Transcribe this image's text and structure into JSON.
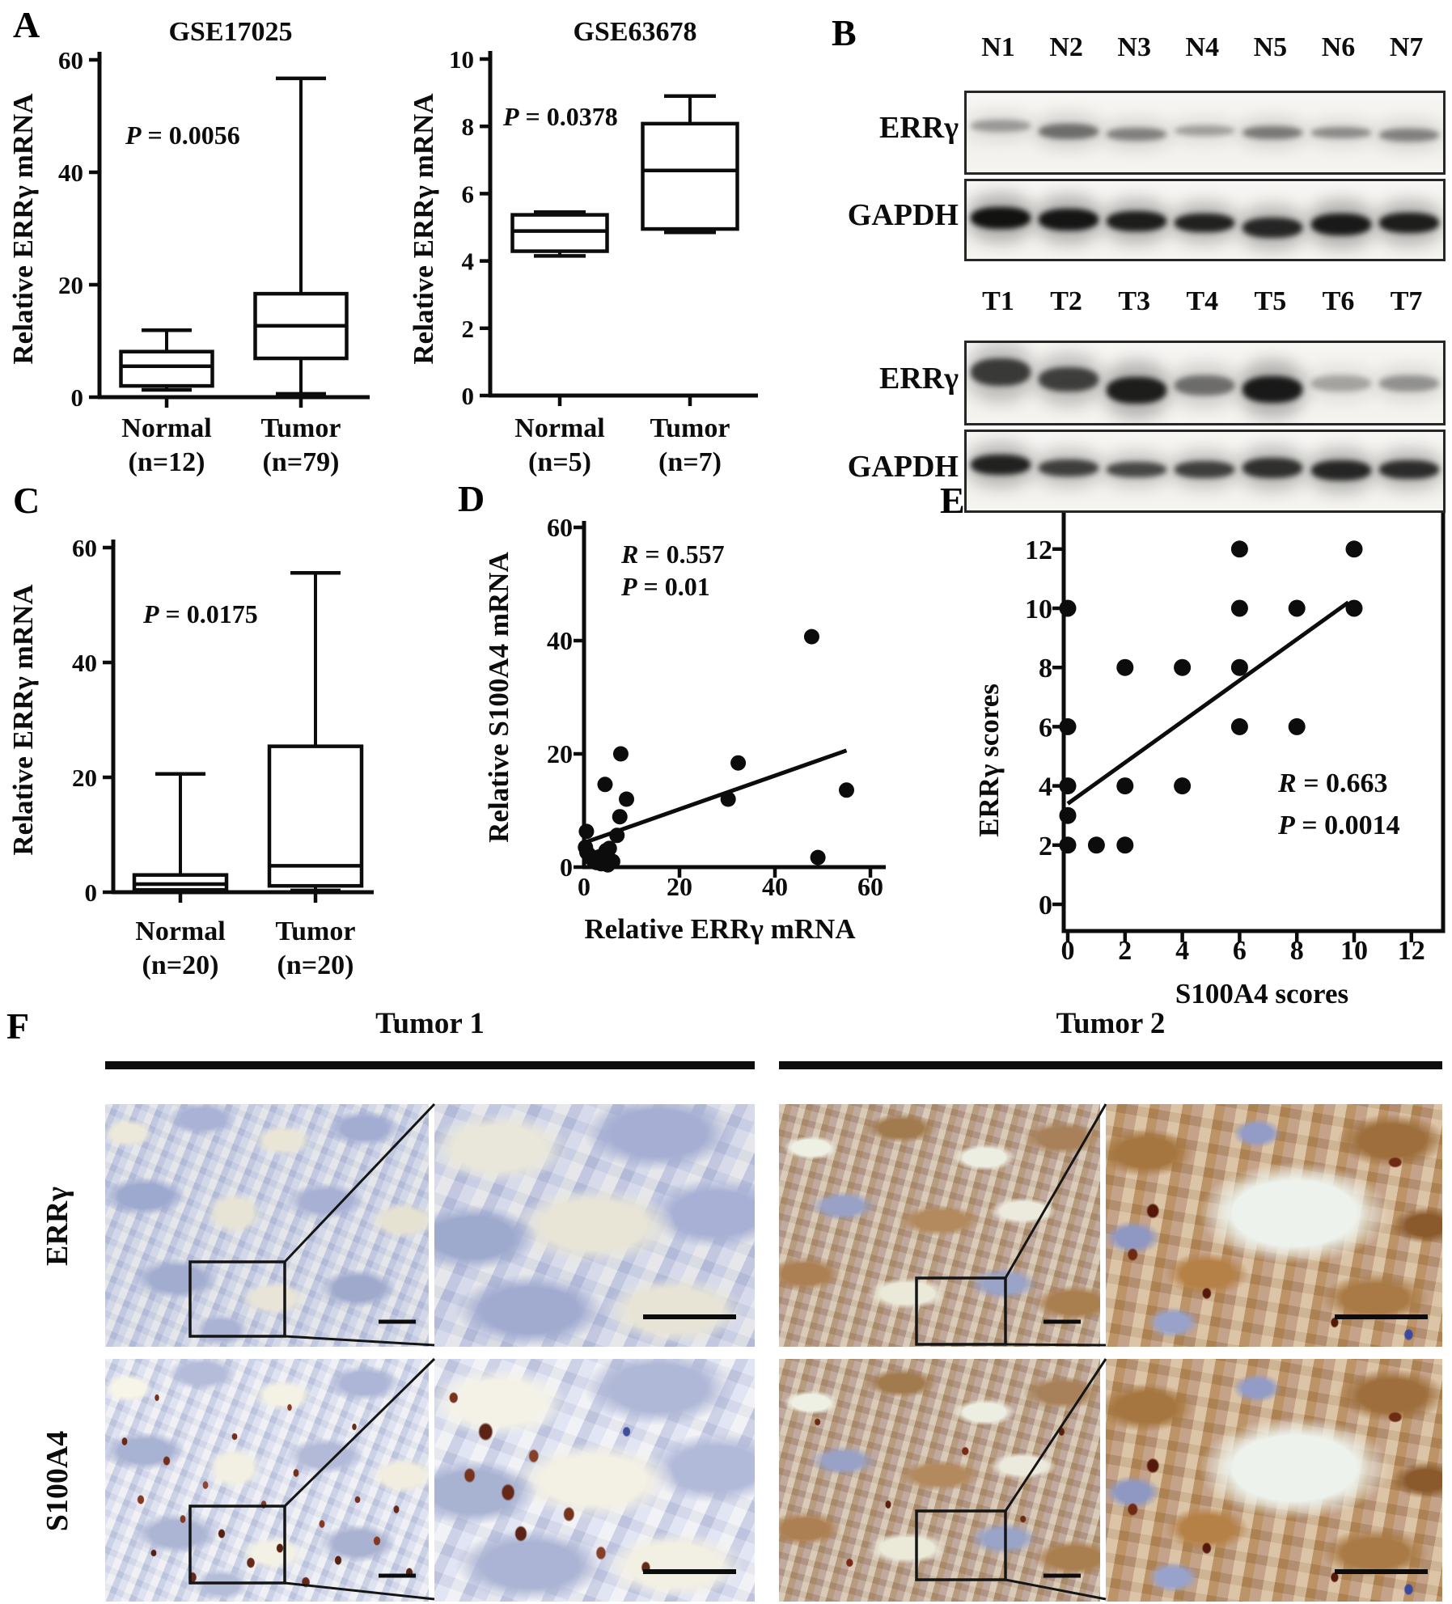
{
  "panel_labels": {
    "a": "A",
    "b": "B",
    "c": "C",
    "d": "D",
    "e": "E",
    "f": "F"
  },
  "chart_data": [
    {
      "id": "gse17025",
      "type": "box",
      "title": "GSE17025",
      "ylabel": "Relative ERRγ mRNA",
      "annotation": "P = 0.0056",
      "ylim": [
        0,
        60
      ],
      "yticks": [
        0,
        20,
        40,
        60
      ],
      "boxes": [
        {
          "label": "Normal",
          "sublabel": "(n=12)",
          "whisker_low": 1.3,
          "q1": 2.0,
          "median": 5.5,
          "q3": 8.1,
          "whisker_high": 11.9
        },
        {
          "label": "Tumor",
          "sublabel": "(n=79)",
          "whisker_low": 0.6,
          "q1": 6.9,
          "median": 12.7,
          "q3": 18.4,
          "whisker_high": 56.7
        }
      ]
    },
    {
      "id": "gse63678",
      "type": "box",
      "title": "GSE63678",
      "ylabel": "Relative ERRγ mRNA",
      "annotation": "P = 0.0378",
      "ylim": [
        0,
        10
      ],
      "yticks": [
        0,
        2,
        4,
        6,
        8,
        10
      ],
      "boxes": [
        {
          "label": "Normal",
          "sublabel": "(n=5)",
          "whisker_low": 4.15,
          "q1": 4.29,
          "median": 4.89,
          "q3": 5.37,
          "whisker_high": 5.45
        },
        {
          "label": "Tumor",
          "sublabel": "(n=7)",
          "whisker_low": 4.85,
          "q1": 4.95,
          "median": 6.69,
          "q3": 8.08,
          "whisker_high": 8.9
        }
      ]
    },
    {
      "id": "patients-qpcr",
      "type": "box",
      "title": "",
      "ylabel": "Relative ERRγ mRNA",
      "annotation": "P = 0.0175",
      "ylim": [
        0,
        60
      ],
      "yticks": [
        0,
        20,
        40,
        60
      ],
      "boxes": [
        {
          "label": "Normal",
          "sublabel": "(n=20)",
          "whisker_low": 0.2,
          "q1": 0.4,
          "median": 1.4,
          "q3": 3.0,
          "whisker_high": 20.6
        },
        {
          "label": "Tumor",
          "sublabel": "(n=20)",
          "whisker_low": 0.3,
          "q1": 1.1,
          "median": 4.6,
          "q3": 25.4,
          "whisker_high": 55.6
        }
      ]
    },
    {
      "id": "mrna-correlation",
      "type": "scatter",
      "xlabel": "Relative ERRγ mRNA",
      "ylabel": "Relative S100A4 mRNA",
      "annotations": [
        "R = 0.557",
        "P = 0.01"
      ],
      "xlim": [
        0,
        60
      ],
      "ylim": [
        0,
        60
      ],
      "xticks": [
        0,
        20,
        40,
        60
      ],
      "yticks": [
        0,
        20,
        40,
        60
      ],
      "points": [
        [
          0.3,
          3.5
        ],
        [
          0.5,
          6.3
        ],
        [
          0.6,
          2.6
        ],
        [
          1,
          2.2
        ],
        [
          1.5,
          1.6
        ],
        [
          2,
          1.2
        ],
        [
          2.6,
          0.8
        ],
        [
          3.2,
          1.8
        ],
        [
          3.6,
          0.6
        ],
        [
          4.2,
          1.1
        ],
        [
          4.6,
          2.9
        ],
        [
          5,
          0.4
        ],
        [
          4.4,
          14.6
        ],
        [
          5.3,
          3.3
        ],
        [
          6,
          1.0
        ],
        [
          6.9,
          5.6
        ],
        [
          7.5,
          8.9
        ],
        [
          7.7,
          20
        ],
        [
          8.9,
          12
        ],
        [
          30.2,
          12
        ],
        [
          32.3,
          18.4
        ],
        [
          47.7,
          40.7
        ],
        [
          49,
          1.7
        ],
        [
          55,
          13.6
        ]
      ],
      "trend": [
        [
          0,
          4.3
        ],
        [
          55,
          20.6
        ]
      ]
    },
    {
      "id": "ihc-scores-correlation",
      "type": "scatter",
      "xlabel": "S100A4 scores",
      "ylabel": "ERRγ scores",
      "annotations": [
        "R = 0.663",
        "P = 0.0014"
      ],
      "xlim": [
        0,
        13
      ],
      "ylim": [
        0,
        13
      ],
      "xticks": [
        0,
        2,
        4,
        6,
        8,
        10,
        12
      ],
      "yticks": [
        0,
        2,
        4,
        6,
        8,
        10,
        12
      ],
      "framed": true,
      "points": [
        [
          0,
          2
        ],
        [
          1,
          2
        ],
        [
          2,
          2
        ],
        [
          0,
          3
        ],
        [
          0,
          4
        ],
        [
          2,
          4
        ],
        [
          4,
          4
        ],
        [
          0,
          6
        ],
        [
          6,
          6
        ],
        [
          8,
          6
        ],
        [
          2,
          8
        ],
        [
          4,
          8
        ],
        [
          6,
          8
        ],
        [
          0,
          10
        ],
        [
          6,
          10
        ],
        [
          8,
          10
        ],
        [
          10,
          10
        ],
        [
          6,
          12
        ],
        [
          10,
          12
        ]
      ],
      "trend": [
        [
          0,
          3.4
        ],
        [
          9.8,
          10.2
        ]
      ]
    }
  ],
  "western_blot": {
    "groups": [
      {
        "name": "normal-tissues",
        "lanes": [
          "N1",
          "N2",
          "N3",
          "N4",
          "N5",
          "N6",
          "N7"
        ],
        "rows": [
          {
            "label": "ERRγ",
            "intensities": [
              0.32,
              0.5,
              0.42,
              0.3,
              0.45,
              0.38,
              0.42
            ]
          },
          {
            "label": "GAPDH",
            "intensities": [
              0.97,
              0.95,
              0.9,
              0.88,
              0.85,
              0.92,
              0.9
            ]
          }
        ]
      },
      {
        "name": "tumor-tissues",
        "lanes": [
          "T1",
          "T2",
          "T3",
          "T4",
          "T5",
          "T6",
          "T7"
        ],
        "rows": [
          {
            "label": "ERRγ",
            "intensities": [
              0.75,
              0.72,
              0.9,
              0.5,
              0.92,
              0.28,
              0.35
            ]
          },
          {
            "label": "GAPDH",
            "intensities": [
              0.88,
              0.72,
              0.68,
              0.72,
              0.8,
              0.85,
              0.82
            ]
          }
        ]
      }
    ]
  },
  "ihc": {
    "column_titles": [
      "Tumor 1",
      "Tumor 2"
    ],
    "row_labels": [
      "ERRγ",
      "S100A4"
    ]
  }
}
